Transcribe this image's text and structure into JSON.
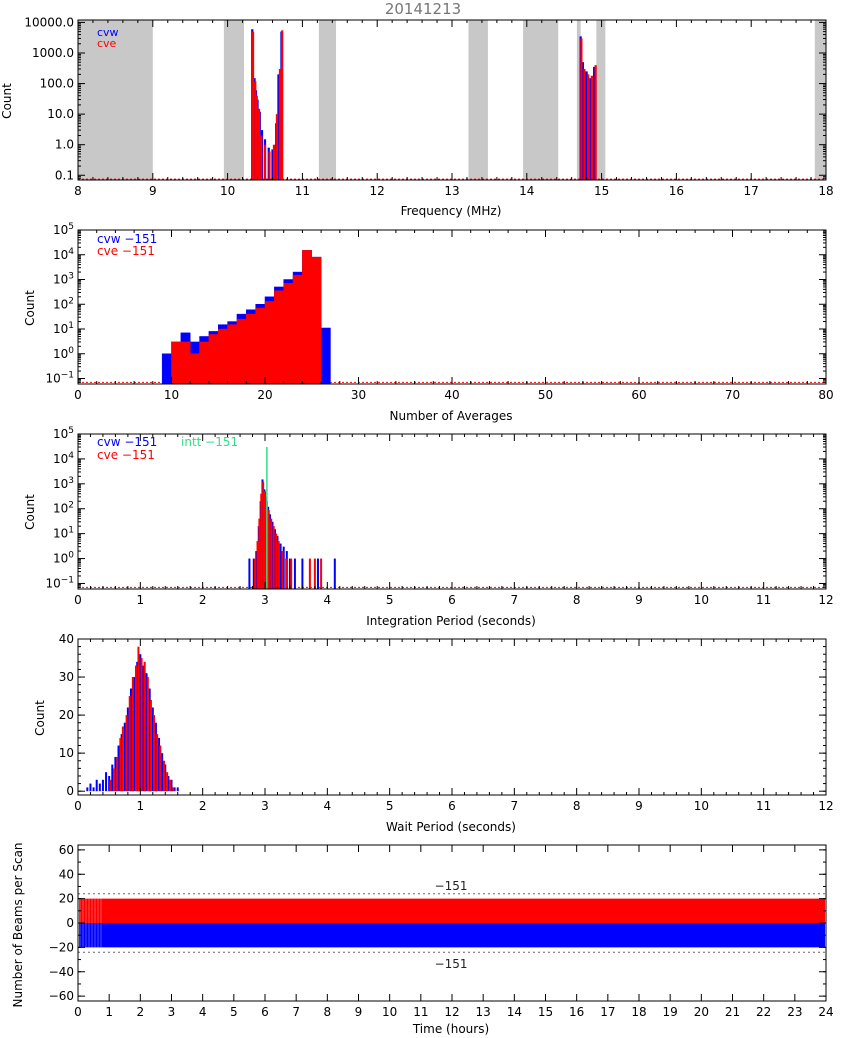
{
  "title": "20141213",
  "colors": {
    "cvw": "#0000ff",
    "cve": "#ff0000",
    "intt": "#33dd88",
    "gray": "#c8c8c8",
    "axis": "#000000",
    "dotted": "#666666"
  },
  "chart_data": [
    {
      "type": "bar",
      "id": "frequency",
      "xlabel": "Frequency (MHz)",
      "ylabel": "Count",
      "xlim": [
        8,
        18
      ],
      "ylim": [
        0.07,
        12000
      ],
      "yscale": "log",
      "xticks": [
        "8",
        "9",
        "10",
        "11",
        "12",
        "13",
        "14",
        "15",
        "16",
        "17",
        "18"
      ],
      "yticks": [
        "0.1",
        "1.0",
        "10.0",
        "100.0",
        "1000.0",
        "10000.0"
      ],
      "legend": [
        {
          "name": "cvw",
          "color": "#0000ff"
        },
        {
          "name": "cve",
          "color": "#ff0000"
        }
      ],
      "shaded_ranges": [
        [
          8.0,
          9.0
        ],
        [
          9.95,
          10.22
        ],
        [
          11.22,
          11.45
        ],
        [
          13.22,
          13.48
        ],
        [
          13.95,
          14.42
        ],
        [
          14.67,
          14.72
        ],
        [
          14.93,
          15.05
        ],
        [
          17.85,
          18.0
        ]
      ],
      "series": [
        {
          "name": "cvw",
          "points": [
            [
              10.33,
              6000
            ],
            [
              10.36,
              150
            ],
            [
              10.38,
              60
            ],
            [
              10.4,
              30
            ],
            [
              10.43,
              12
            ],
            [
              10.46,
              3
            ],
            [
              10.5,
              1.5
            ],
            [
              10.55,
              0.8
            ],
            [
              10.6,
              0.7
            ],
            [
              10.65,
              5
            ],
            [
              10.68,
              200
            ],
            [
              10.72,
              5000
            ],
            [
              14.72,
              3500
            ],
            [
              14.75,
              500
            ],
            [
              14.8,
              250
            ],
            [
              14.85,
              150
            ],
            [
              14.9,
              350
            ]
          ]
        },
        {
          "name": "cve",
          "points": [
            [
              10.34,
              5000
            ],
            [
              10.37,
              120
            ],
            [
              10.39,
              40
            ],
            [
              10.42,
              15
            ],
            [
              10.45,
              2
            ],
            [
              10.5,
              1
            ],
            [
              10.56,
              0.6
            ],
            [
              10.62,
              1
            ],
            [
              10.66,
              10
            ],
            [
              10.7,
              300
            ],
            [
              10.73,
              5500
            ],
            [
              14.73,
              3000
            ],
            [
              14.77,
              300
            ],
            [
              14.82,
              200
            ],
            [
              14.87,
              180
            ],
            [
              14.92,
              400
            ]
          ]
        }
      ]
    },
    {
      "type": "bar",
      "id": "averages",
      "xlabel": "Number of Averages",
      "ylabel": "Count",
      "xlim": [
        0,
        80
      ],
      "ylim": [
        0.06,
        100000
      ],
      "yscale": "log",
      "xticks": [
        "0",
        "10",
        "20",
        "30",
        "40",
        "50",
        "60",
        "70",
        "80"
      ],
      "legend": [
        {
          "name": "cvw −151",
          "color": "#0000ff"
        },
        {
          "name": "cve −151",
          "color": "#ff0000"
        }
      ],
      "series": [
        {
          "name": "cvw −151",
          "x": [
            9,
            10,
            11,
            12,
            13,
            14,
            15,
            16,
            17,
            18,
            19,
            20,
            21,
            22,
            23,
            24,
            25,
            26
          ],
          "values": [
            1,
            3,
            7,
            3,
            5,
            8,
            15,
            20,
            40,
            60,
            100,
            200,
            500,
            1000,
            2000,
            15000,
            8000,
            11
          ]
        },
        {
          "name": "cve −151",
          "x": [
            9,
            10,
            11,
            12,
            13,
            14,
            15,
            16,
            17,
            18,
            19,
            20,
            21,
            22,
            23,
            24,
            25,
            26
          ],
          "values": [
            0,
            3,
            3,
            1,
            3,
            6,
            10,
            15,
            25,
            40,
            70,
            130,
            350,
            700,
            1500,
            15000,
            8000,
            0
          ]
        }
      ]
    },
    {
      "type": "bar",
      "id": "integration",
      "xlabel": "Integration Period (seconds)",
      "ylabel": "Count",
      "xlim": [
        0,
        12
      ],
      "ylim": [
        0.06,
        100000
      ],
      "yscale": "log",
      "xticks": [
        "0",
        "1",
        "2",
        "3",
        "4",
        "5",
        "6",
        "7",
        "8",
        "9",
        "10",
        "11",
        "12"
      ],
      "legend": [
        {
          "name": "cvw −151",
          "color": "#0000ff"
        },
        {
          "name": "intt −151",
          "color": "#33dd88"
        },
        {
          "name": "cve −151",
          "color": "#ff0000"
        }
      ],
      "series": [
        {
          "name": "cvw −151",
          "points": [
            [
              2.75,
              1
            ],
            [
              2.82,
              1
            ],
            [
              2.86,
              2
            ],
            [
              2.9,
              20
            ],
            [
              2.93,
              200
            ],
            [
              2.96,
              1500
            ],
            [
              2.99,
              600
            ],
            [
              3.02,
              300
            ],
            [
              3.05,
              120
            ],
            [
              3.08,
              60
            ],
            [
              3.12,
              30
            ],
            [
              3.16,
              15
            ],
            [
              3.2,
              8
            ],
            [
              3.25,
              4
            ],
            [
              3.3,
              3
            ],
            [
              3.35,
              2
            ],
            [
              3.4,
              1
            ],
            [
              3.48,
              1
            ],
            [
              3.6,
              1
            ],
            [
              3.85,
              1
            ],
            [
              4.12,
              1
            ]
          ]
        },
        {
          "name": "cve −151",
          "points": [
            [
              2.84,
              1
            ],
            [
              2.88,
              5
            ],
            [
              2.91,
              40
            ],
            [
              2.94,
              400
            ],
            [
              2.97,
              1200
            ],
            [
              3.0,
              500
            ],
            [
              3.03,
              200
            ],
            [
              3.06,
              90
            ],
            [
              3.1,
              40
            ],
            [
              3.14,
              20
            ],
            [
              3.18,
              10
            ],
            [
              3.22,
              5
            ],
            [
              3.28,
              2
            ],
            [
              3.34,
              1
            ],
            [
              3.42,
              1
            ],
            [
              3.72,
              1
            ],
            [
              3.8,
              1
            ],
            [
              3.9,
              1
            ]
          ]
        },
        {
          "name": "intt −151",
          "points": [
            [
              3.03,
              30000
            ]
          ]
        }
      ]
    },
    {
      "type": "bar",
      "id": "wait",
      "xlabel": "Wait Period (seconds)",
      "ylabel": "Count",
      "xlim": [
        0,
        12
      ],
      "ylim": [
        -1,
        40
      ],
      "yscale": "linear",
      "xticks": [
        "0",
        "1",
        "2",
        "3",
        "4",
        "5",
        "6",
        "7",
        "8",
        "9",
        "10",
        "11",
        "12"
      ],
      "yticks": [
        "0",
        "10",
        "20",
        "30",
        "40"
      ],
      "series": [
        {
          "name": "cvw",
          "points": [
            [
              0.15,
              1
            ],
            [
              0.2,
              2
            ],
            [
              0.25,
              1
            ],
            [
              0.3,
              3
            ],
            [
              0.35,
              2
            ],
            [
              0.4,
              3
            ],
            [
              0.45,
              5
            ],
            [
              0.5,
              4
            ],
            [
              0.55,
              7
            ],
            [
              0.6,
              9
            ],
            [
              0.65,
              12
            ],
            [
              0.7,
              15
            ],
            [
              0.75,
              18
            ],
            [
              0.8,
              22
            ],
            [
              0.85,
              27
            ],
            [
              0.9,
              30
            ],
            [
              0.95,
              34
            ],
            [
              1.0,
              36
            ],
            [
              1.05,
              33
            ],
            [
              1.1,
              31
            ],
            [
              1.15,
              27
            ],
            [
              1.2,
              22
            ],
            [
              1.25,
              18
            ],
            [
              1.3,
              14
            ],
            [
              1.35,
              10
            ],
            [
              1.4,
              7
            ],
            [
              1.45,
              4
            ],
            [
              1.5,
              3
            ],
            [
              1.55,
              1
            ],
            [
              1.6,
              1
            ]
          ]
        },
        {
          "name": "cve",
          "points": [
            [
              0.52,
              3
            ],
            [
              0.58,
              6
            ],
            [
              0.63,
              9
            ],
            [
              0.68,
              14
            ],
            [
              0.72,
              17
            ],
            [
              0.78,
              20
            ],
            [
              0.83,
              25
            ],
            [
              0.88,
              30
            ],
            [
              0.93,
              33
            ],
            [
              0.97,
              38
            ],
            [
              1.02,
              35
            ],
            [
              1.07,
              34
            ],
            [
              1.12,
              30
            ],
            [
              1.17,
              24
            ],
            [
              1.22,
              20
            ],
            [
              1.27,
              15
            ],
            [
              1.32,
              12
            ],
            [
              1.38,
              8
            ],
            [
              1.43,
              5
            ],
            [
              1.48,
              3
            ],
            [
              1.53,
              1
            ]
          ]
        }
      ]
    },
    {
      "type": "bar",
      "id": "beams",
      "xlabel": "Time (hours)",
      "ylabel": "Number of Beams per Scan",
      "xlim": [
        0,
        24
      ],
      "ylim": [
        -64,
        64
      ],
      "yscale": "linear",
      "xticks": [
        "0",
        "1",
        "2",
        "3",
        "4",
        "5",
        "6",
        "7",
        "8",
        "9",
        "10",
        "11",
        "12",
        "13",
        "14",
        "15",
        "16",
        "17",
        "18",
        "19",
        "20",
        "21",
        "22",
        "23",
        "24"
      ],
      "yticks": [
        "−60",
        "−40",
        "−20",
        "0",
        "20",
        "40",
        "60"
      ],
      "reference_lines": [
        {
          "y": 24,
          "label": "−151"
        },
        {
          "y": -24,
          "label": "−151"
        }
      ],
      "series": [
        {
          "name": "cve",
          "value": 20
        },
        {
          "name": "cvw",
          "value": -20
        }
      ]
    }
  ]
}
